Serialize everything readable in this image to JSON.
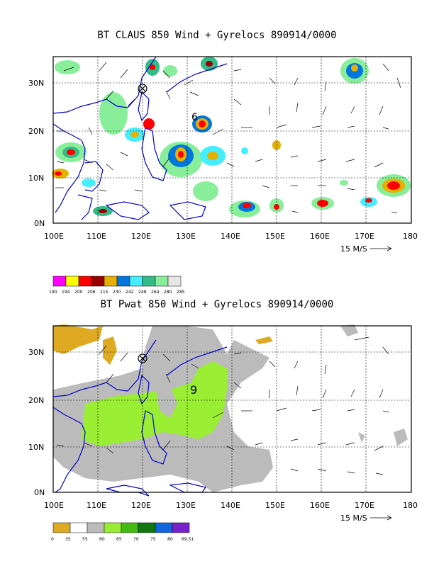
{
  "panel1": {
    "title": "BT CLAUS 850 Wind + Gyrelocs 890914/0000",
    "lat_labels": [
      "30N",
      "20N",
      "10N",
      "0N"
    ],
    "lon_labels": [
      "100E",
      "110E",
      "120E",
      "130E",
      "140E",
      "150E",
      "160E",
      "170E",
      "180"
    ],
    "ref_vector_label": "15 M/S",
    "storm_symbols": [
      "6"
    ],
    "legend": {
      "colors": [
        "#ff00ff",
        "#ffff00",
        "#ff0000",
        "#990000",
        "#e6b000",
        "#0077dd",
        "#44eeff",
        "#33bb88",
        "#88ee99",
        "#e6e6e6"
      ],
      "labels": [
        "190",
        "194",
        "200",
        "206",
        "215",
        "230",
        "242",
        "248",
        "264",
        "280",
        "285"
      ]
    }
  },
  "panel2": {
    "title": "BT Pwat 850 Wind + Gyrelocs 890914/0000",
    "lat_labels": [
      "30N",
      "20N",
      "10N",
      "0N"
    ],
    "lon_labels": [
      "100E",
      "110E",
      "120E",
      "130E",
      "140E",
      "150E",
      "160E",
      "170E",
      "180"
    ],
    "ref_vector_label": "15 M/S",
    "storm_symbols": [
      "9"
    ],
    "legend": {
      "colors": [
        "#ddaa22",
        "#ffffff",
        "#bbbbbb",
        "#99ee33",
        "#44bb11",
        "#117711",
        "#1166dd",
        "#7722cc"
      ],
      "labels": [
        "0",
        "35",
        "55",
        "60",
        "65",
        "70",
        "75",
        "80",
        "69.51"
      ]
    }
  }
}
